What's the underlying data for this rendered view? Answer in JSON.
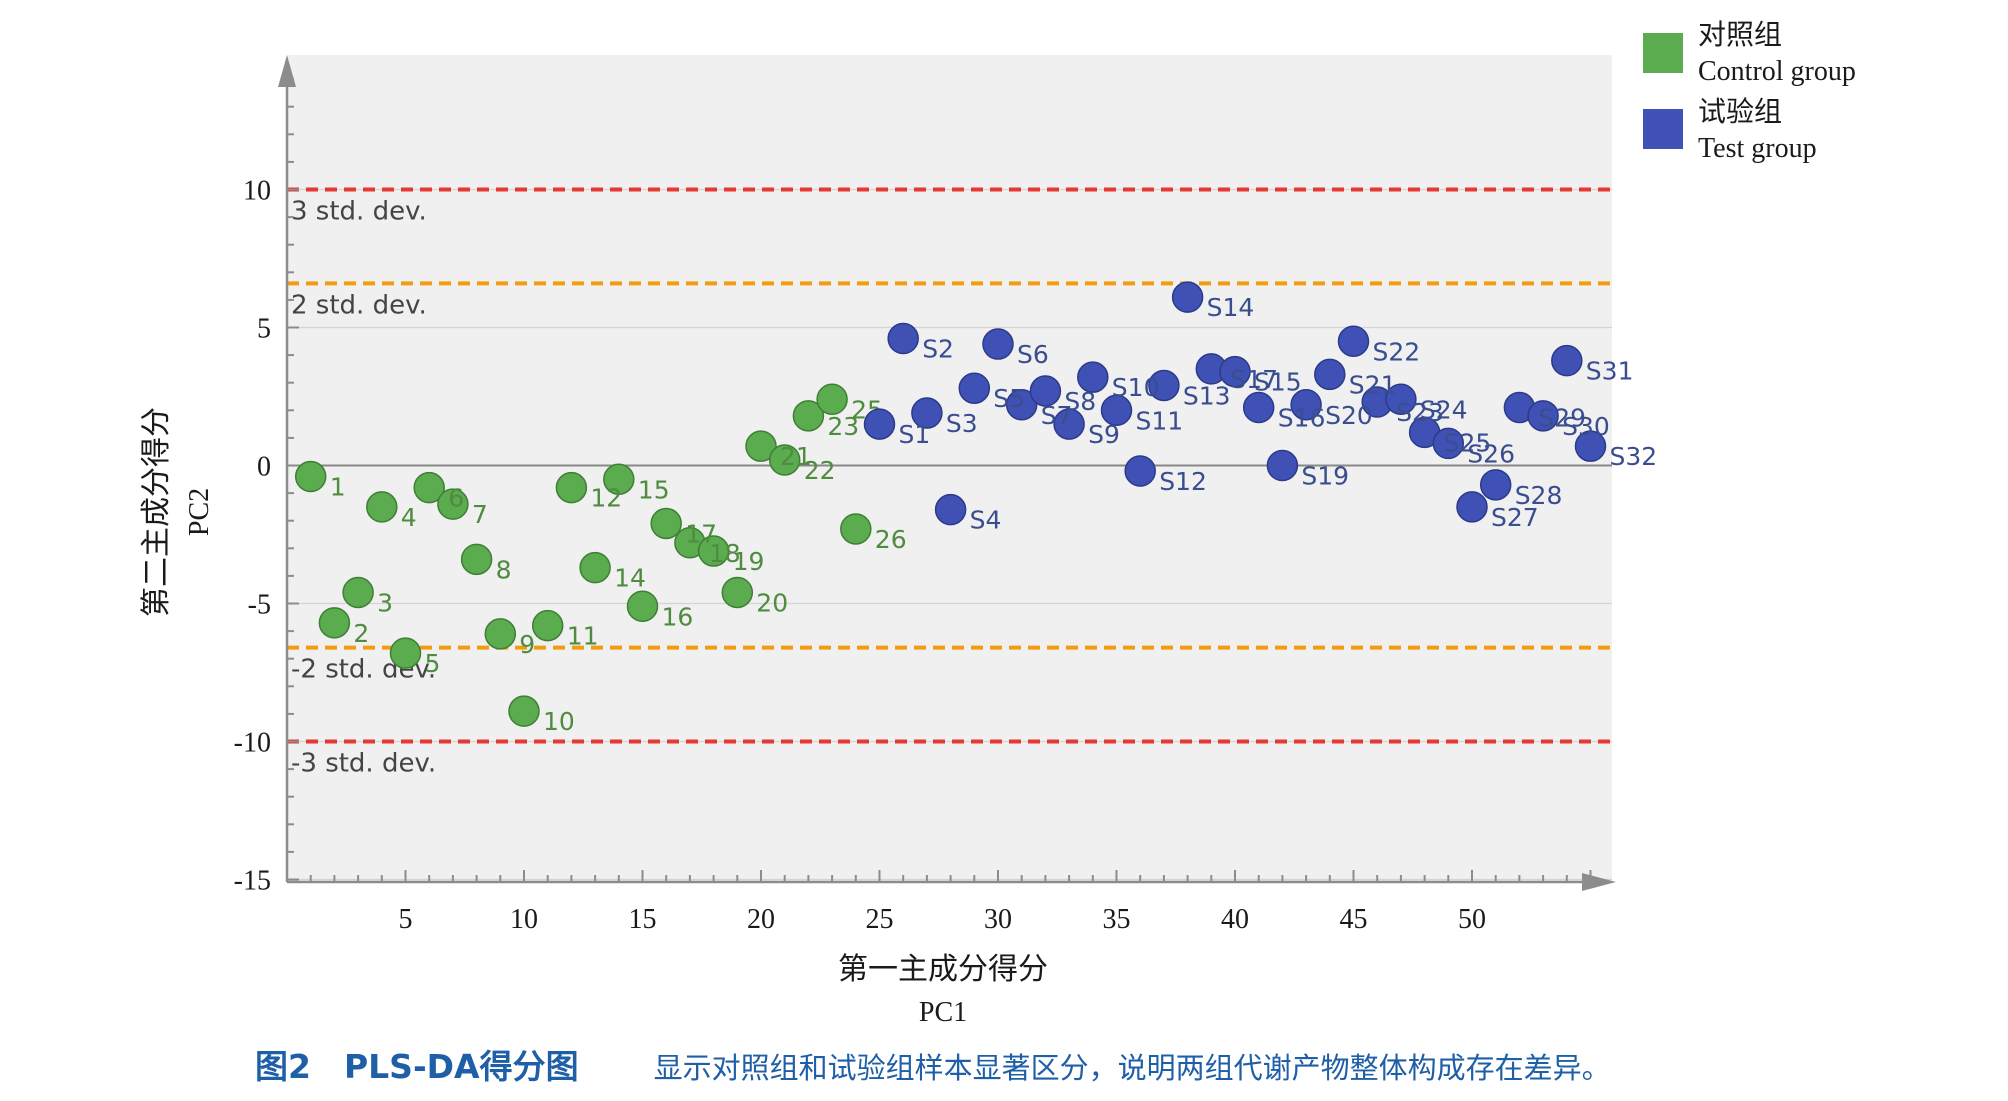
{
  "chart_data": {
    "type": "scatter",
    "title": "",
    "xlabel": "第一主成分得分",
    "xlabel_sub": "PC1",
    "ylabel": "第二主成分得分",
    "ylabel_sub": "PC2",
    "xlim": [
      0,
      56
    ],
    "ylim": [
      -15,
      15
    ],
    "xticks": [
      5,
      10,
      15,
      20,
      25,
      30,
      35,
      40,
      45,
      50
    ],
    "yticks": [
      10,
      5,
      0,
      -5,
      -10,
      -15
    ],
    "grid": true,
    "legend_position": "top-right",
    "reference_lines": [
      {
        "y": 10,
        "label": "3 std. dev.",
        "color": "#e53935"
      },
      {
        "y": 6.6,
        "label": "2 std. dev.",
        "color": "#f39c12"
      },
      {
        "y": -6.6,
        "label": "-2 std. dev.",
        "color": "#f39c12"
      },
      {
        "y": -10,
        "label": "-3 std. dev.",
        "color": "#e53935"
      }
    ],
    "series": [
      {
        "name": "对照组",
        "name_en": "Control group",
        "color": "#5aac4f",
        "points": [
          {
            "label": "1",
            "x": 1,
            "y": -0.4
          },
          {
            "label": "2",
            "x": 2,
            "y": -5.7
          },
          {
            "label": "3",
            "x": 3,
            "y": -4.6
          },
          {
            "label": "4",
            "x": 4,
            "y": -1.5
          },
          {
            "label": "5",
            "x": 5,
            "y": -6.8
          },
          {
            "label": "6",
            "x": 6,
            "y": -0.8
          },
          {
            "label": "7",
            "x": 7,
            "y": -1.4
          },
          {
            "label": "8",
            "x": 8,
            "y": -3.4
          },
          {
            "label": "9",
            "x": 9,
            "y": -6.1
          },
          {
            "label": "10",
            "x": 10,
            "y": -8.9
          },
          {
            "label": "11",
            "x": 11,
            "y": -5.8
          },
          {
            "label": "12",
            "x": 12,
            "y": -0.8
          },
          {
            "label": "14",
            "x": 13,
            "y": -3.7
          },
          {
            "label": "15",
            "x": 14,
            "y": -0.5
          },
          {
            "label": "16",
            "x": 15,
            "y": -5.1
          },
          {
            "label": "17",
            "x": 16,
            "y": -2.1
          },
          {
            "label": "18",
            "x": 17,
            "y": -2.8
          },
          {
            "label": "19",
            "x": 18,
            "y": -3.1
          },
          {
            "label": "20",
            "x": 19,
            "y": -4.6
          },
          {
            "label": "21",
            "x": 20,
            "y": 0.7
          },
          {
            "label": "22",
            "x": 21,
            "y": 0.2
          },
          {
            "label": "23",
            "x": 22,
            "y": 1.8
          },
          {
            "label": "25",
            "x": 23,
            "y": 2.4
          },
          {
            "label": "26",
            "x": 24,
            "y": -2.3
          }
        ]
      },
      {
        "name": "试验组",
        "name_en": "Test group",
        "color": "#3f51b5",
        "points": [
          {
            "label": "S1",
            "x": 25,
            "y": 1.5
          },
          {
            "label": "S2",
            "x": 26,
            "y": 4.6
          },
          {
            "label": "S3",
            "x": 27,
            "y": 1.9
          },
          {
            "label": "S4",
            "x": 28,
            "y": -1.6
          },
          {
            "label": "S5",
            "x": 29,
            "y": 2.8
          },
          {
            "label": "S6",
            "x": 30,
            "y": 4.4
          },
          {
            "label": "S7",
            "x": 31,
            "y": 2.2
          },
          {
            "label": "S8",
            "x": 32,
            "y": 2.7
          },
          {
            "label": "S9",
            "x": 33,
            "y": 1.5
          },
          {
            "label": "S10",
            "x": 34,
            "y": 3.2
          },
          {
            "label": "S11",
            "x": 35,
            "y": 2.0
          },
          {
            "label": "S12",
            "x": 36,
            "y": -0.2
          },
          {
            "label": "S13",
            "x": 37,
            "y": 2.9
          },
          {
            "label": "S14",
            "x": 38,
            "y": 6.1
          },
          {
            "label": "S17",
            "x": 39,
            "y": 3.5
          },
          {
            "label": "S15",
            "x": 40,
            "y": 3.4
          },
          {
            "label": "S16",
            "x": 41,
            "y": 2.1
          },
          {
            "label": "S19",
            "x": 42,
            "y": 0.0
          },
          {
            "label": "S20",
            "x": 43,
            "y": 2.2
          },
          {
            "label": "S21",
            "x": 44,
            "y": 3.3
          },
          {
            "label": "S22",
            "x": 45,
            "y": 4.5
          },
          {
            "label": "S23",
            "x": 46,
            "y": 2.3
          },
          {
            "label": "S24",
            "x": 47,
            "y": 2.4
          },
          {
            "label": "S25",
            "x": 48,
            "y": 1.2
          },
          {
            "label": "S26",
            "x": 49,
            "y": 0.8
          },
          {
            "label": "S27",
            "x": 50,
            "y": -1.5
          },
          {
            "label": "S28",
            "x": 51,
            "y": -0.7
          },
          {
            "label": "S29",
            "x": 52,
            "y": 2.1
          },
          {
            "label": "S30",
            "x": 53,
            "y": 1.8
          },
          {
            "label": "S31",
            "x": 54,
            "y": 3.8
          },
          {
            "label": "S32",
            "x": 55,
            "y": 0.7
          }
        ]
      }
    ]
  },
  "caption": {
    "title": "图2　PLS-DA得分图",
    "text": "显示对照组和试验组样本显著区分，说明两组代谢产物整体构成存在差异。"
  }
}
